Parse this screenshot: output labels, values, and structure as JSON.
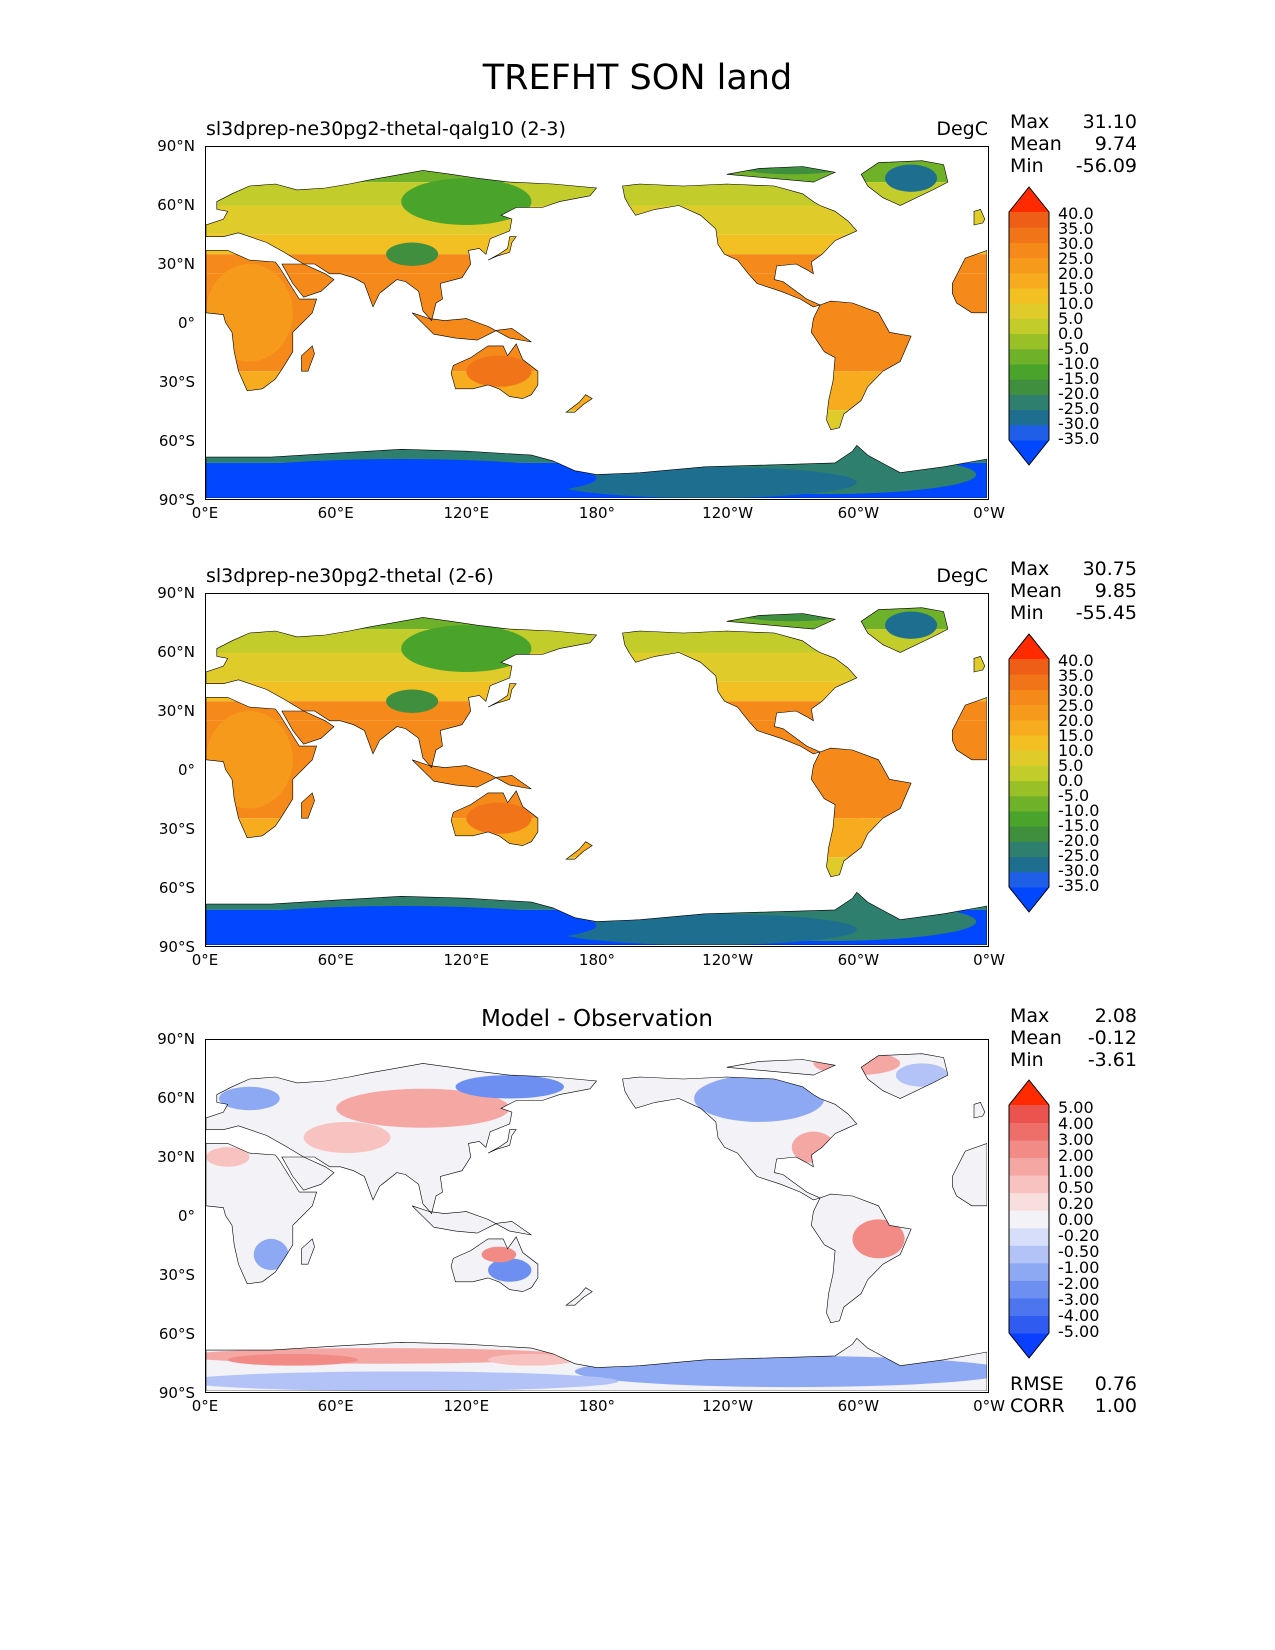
{
  "title": "TREFHT SON land",
  "x_ticks": [
    "0°E",
    "60°E",
    "120°E",
    "180°",
    "120°W",
    "60°W",
    "0°W"
  ],
  "y_ticks": [
    "90°N",
    "60°N",
    "30°N",
    "0°",
    "30°S",
    "60°S",
    "90°S"
  ],
  "panels": [
    {
      "title": "sl3dprep-ne30pg2-thetal-qalg10 (2-3)",
      "units": "DegC",
      "stats": {
        "max_label": "Max",
        "max": "31.10",
        "mean_label": "Mean",
        "mean": "9.74",
        "min_label": "Min",
        "min": "-56.09"
      },
      "colorbar_labels": [
        "40.0",
        "35.0",
        "30.0",
        "25.0",
        "20.0",
        "15.0",
        "10.0",
        "5.0",
        "0.0",
        "-5.0",
        "-10.0",
        "-15.0",
        "-20.0",
        "-25.0",
        "-30.0",
        "-35.0"
      ]
    },
    {
      "title": "sl3dprep-ne30pg2-thetal (2-6)",
      "units": "DegC",
      "stats": {
        "max_label": "Max",
        "max": "30.75",
        "mean_label": "Mean",
        "mean": "9.85",
        "min_label": "Min",
        "min": "-55.45"
      },
      "colorbar_labels": [
        "40.0",
        "35.0",
        "30.0",
        "25.0",
        "20.0",
        "15.0",
        "10.0",
        "5.0",
        "0.0",
        "-5.0",
        "-10.0",
        "-15.0",
        "-20.0",
        "-25.0",
        "-30.0",
        "-35.0"
      ]
    },
    {
      "title": "Model - Observation",
      "stats": {
        "max_label": "Max",
        "max": "2.08",
        "mean_label": "Mean",
        "mean": "-0.12",
        "min_label": "Min",
        "min": "-3.61"
      },
      "colorbar_labels": [
        "5.00",
        "4.00",
        "3.00",
        "2.00",
        "1.00",
        "0.50",
        "0.20",
        "0.00",
        "-0.20",
        "-0.50",
        "-1.00",
        "-2.00",
        "-3.00",
        "-4.00",
        "-5.00"
      ],
      "rmse_label": "RMSE",
      "rmse": "0.76",
      "corr_label": "CORR",
      "corr": "1.00"
    }
  ],
  "colors": {
    "abs_scale": [
      "#0047ff",
      "#1f5fe8",
      "#1e6f8f",
      "#2e7f6e",
      "#3f8f3f",
      "#4aa32a",
      "#6fb22a",
      "#99c026",
      "#c2cc2b",
      "#dfcc2b",
      "#f2c023",
      "#f7ab1e",
      "#f69a1b",
      "#f5891a",
      "#f27418",
      "#ee5e16",
      "#ff2a00"
    ],
    "diff_scale": [
      "#0a3fff",
      "#2f5bf0",
      "#4d75f0",
      "#6e8ff2",
      "#8ea9f4",
      "#b3c3f7",
      "#d6def9",
      "#f2f2f7",
      "#f9dede",
      "#f8c2c0",
      "#f5a7a4",
      "#f28b86",
      "#ee6f6a",
      "#ea534e",
      "#ff2a00"
    ]
  }
}
